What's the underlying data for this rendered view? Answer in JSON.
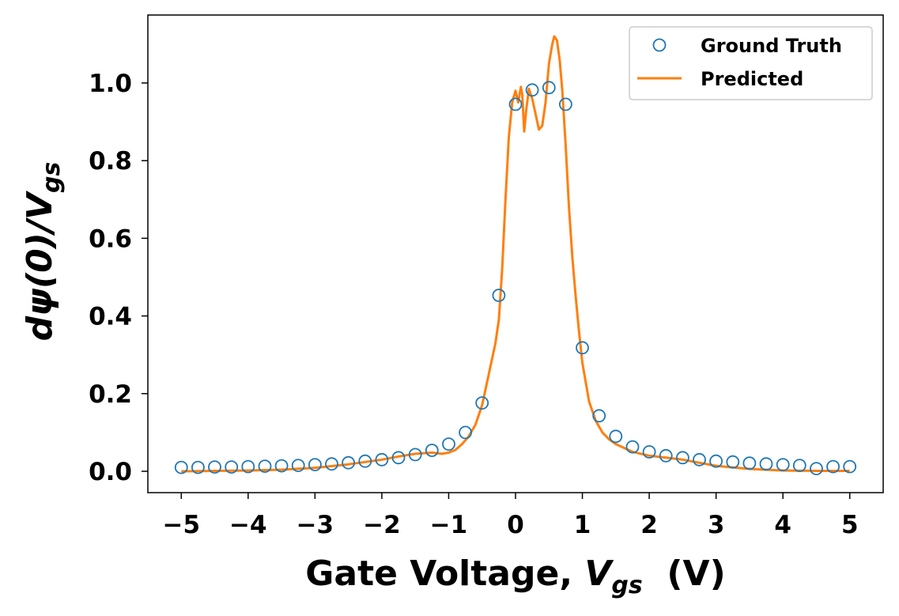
{
  "chart_data": {
    "type": "line",
    "xlabel": {
      "main": "Gate Voltage, ",
      "var": "V",
      "sub": "gs",
      "unit": "  (V)"
    },
    "ylabel": {
      "main": "dψ(0)/",
      "var": "V",
      "sub": "gs"
    },
    "xlim": [
      -5.5,
      5.5
    ],
    "ylim": [
      -0.055,
      1.175
    ],
    "xticks": [
      -5,
      -4,
      -3,
      -2,
      -1,
      0,
      1,
      2,
      3,
      4,
      5
    ],
    "xtick_labels": [
      "−5",
      "−4",
      "−3",
      "−2",
      "−1",
      "0",
      "1",
      "2",
      "3",
      "4",
      "5"
    ],
    "yticks": [
      0.0,
      0.2,
      0.4,
      0.6,
      0.8,
      1.0
    ],
    "ytick_labels": [
      "0.0",
      "0.2",
      "0.4",
      "0.6",
      "0.8",
      "1.0"
    ],
    "legend_position": "top-right",
    "colors": {
      "ground_truth": "#1f77b4",
      "predicted": "#ff7f0e"
    },
    "series": [
      {
        "name": "Ground Truth",
        "style": "markers",
        "x": [
          -5,
          -4.75,
          -4.5,
          -4.25,
          -4,
          -3.75,
          -3.5,
          -3.25,
          -3,
          -2.75,
          -2.5,
          -2.25,
          -2,
          -1.75,
          -1.5,
          -1.25,
          -1,
          -0.75,
          -0.5,
          -0.25,
          0,
          0.25,
          0.5,
          0.75,
          1,
          1.25,
          1.5,
          1.75,
          2,
          2.25,
          2.5,
          2.75,
          3,
          3.25,
          3.5,
          3.75,
          4,
          4.25,
          4.5,
          4.75,
          5
        ],
        "y": [
          0.01,
          0.01,
          0.011,
          0.011,
          0.012,
          0.013,
          0.014,
          0.015,
          0.017,
          0.019,
          0.022,
          0.026,
          0.03,
          0.035,
          0.043,
          0.054,
          0.07,
          0.1,
          0.176,
          0.453,
          0.945,
          0.982,
          0.988,
          0.945,
          0.318,
          0.143,
          0.09,
          0.063,
          0.05,
          0.04,
          0.035,
          0.03,
          0.026,
          0.024,
          0.021,
          0.019,
          0.017,
          0.015,
          0.007,
          0.012,
          0.012
        ]
      },
      {
        "name": "Predicted",
        "style": "line",
        "x": [
          -5,
          -4.5,
          -4,
          -3.5,
          -3,
          -2.5,
          -2,
          -1.75,
          -1.5,
          -1.25,
          -1.1,
          -1,
          -0.9,
          -0.8,
          -0.7,
          -0.6,
          -0.5,
          -0.4,
          -0.3,
          -0.25,
          -0.2,
          -0.15,
          -0.1,
          -0.05,
          0,
          0.04,
          0.08,
          0.1,
          0.13,
          0.16,
          0.2,
          0.25,
          0.3,
          0.35,
          0.4,
          0.45,
          0.5,
          0.55,
          0.58,
          0.62,
          0.66,
          0.7,
          0.75,
          0.8,
          0.85,
          0.9,
          0.95,
          1,
          1.1,
          1.2,
          1.3,
          1.4,
          1.5,
          1.75,
          2,
          2.5,
          3,
          3.5,
          4,
          4.5,
          5
        ],
        "y": [
          0.0,
          0.001,
          0.002,
          0.004,
          0.009,
          0.018,
          0.03,
          0.038,
          0.045,
          0.048,
          0.045,
          0.048,
          0.055,
          0.07,
          0.09,
          0.12,
          0.17,
          0.25,
          0.33,
          0.39,
          0.52,
          0.7,
          0.86,
          0.95,
          0.98,
          0.95,
          0.99,
          0.97,
          0.875,
          0.93,
          0.985,
          0.96,
          0.92,
          0.88,
          0.89,
          0.95,
          1.05,
          1.1,
          1.12,
          1.11,
          1.06,
          0.98,
          0.84,
          0.68,
          0.55,
          0.45,
          0.36,
          0.28,
          0.18,
          0.13,
          0.1,
          0.082,
          0.07,
          0.05,
          0.04,
          0.03,
          0.014,
          0.006,
          0.002,
          0.001,
          0.001
        ]
      }
    ]
  }
}
